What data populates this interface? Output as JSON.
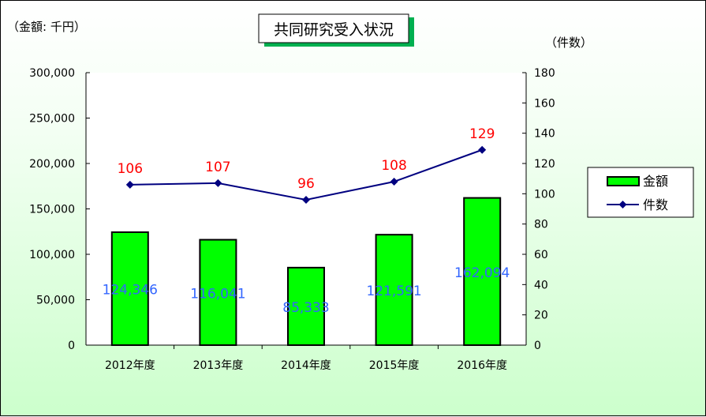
{
  "chart_data": {
    "type": "bar+line",
    "title": "共同研究受入状況",
    "left_axis_label": "（金額: 千円）",
    "right_axis_label": "（件数）",
    "categories": [
      "2012年度",
      "2013年度",
      "2014年度",
      "2015年度",
      "2016年度"
    ],
    "left_ylim": [
      0,
      300000
    ],
    "left_ticks": [
      "0",
      "50,000",
      "100,000",
      "150,000",
      "200,000",
      "250,000",
      "300,000"
    ],
    "right_ylim": [
      0,
      180
    ],
    "right_ticks": [
      "0",
      "20",
      "40",
      "60",
      "80",
      "100",
      "120",
      "140",
      "160",
      "180"
    ],
    "series": [
      {
        "name": "金額",
        "type": "bar",
        "axis": "left",
        "color": "#00ff00",
        "values": [
          124346,
          116041,
          85333,
          121591,
          162094
        ],
        "labels": [
          "124,346",
          "116,041",
          "85,333",
          "121,591",
          "162,094"
        ],
        "label_color": "#3366ff"
      },
      {
        "name": "件数",
        "type": "line",
        "axis": "right",
        "color": "#000080",
        "values": [
          106,
          107,
          96,
          108,
          129
        ],
        "labels": [
          "106",
          "107",
          "96",
          "108",
          "129"
        ],
        "label_color": "#ff0000"
      }
    ],
    "legend": "right"
  }
}
